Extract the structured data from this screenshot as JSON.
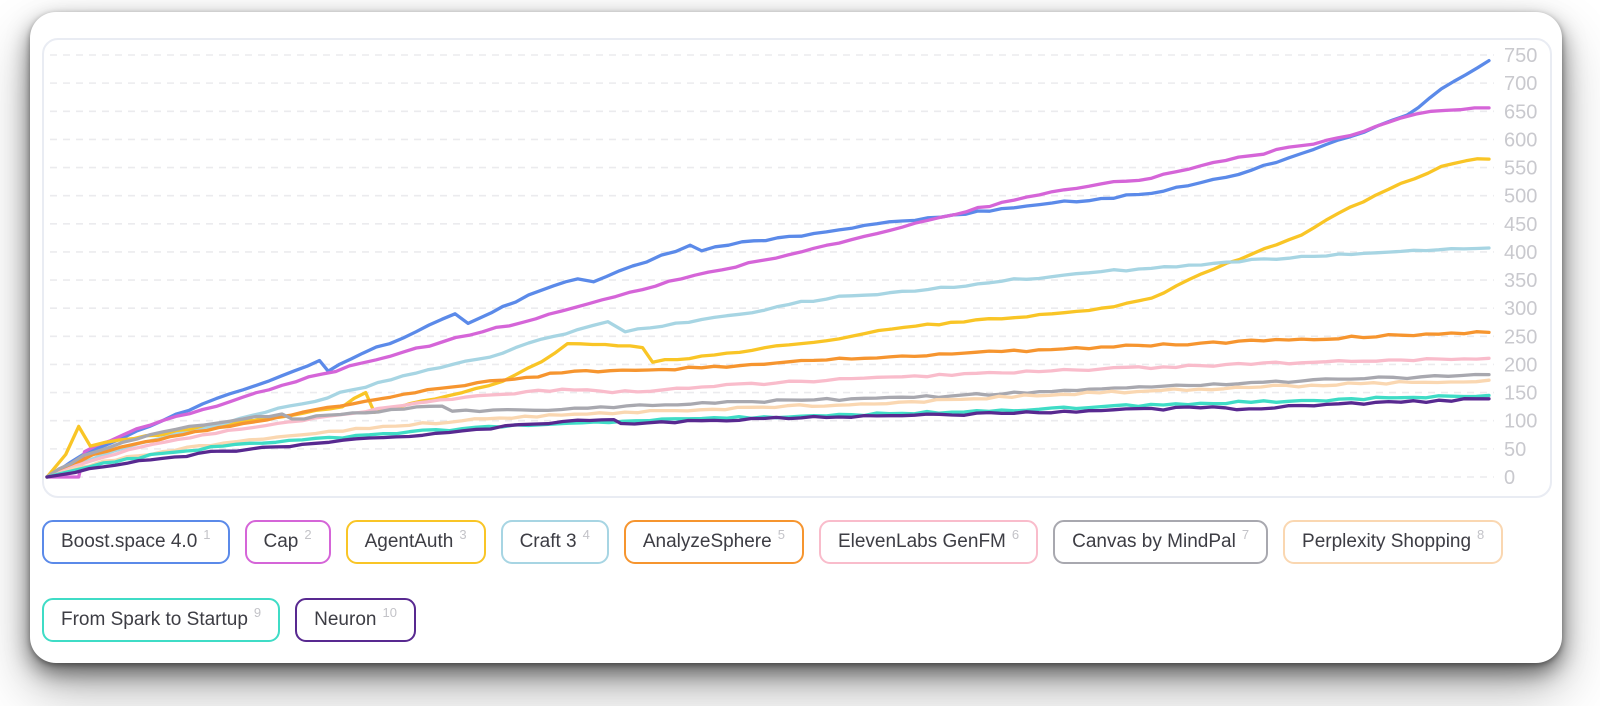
{
  "card": {
    "kind": "daily-ranking-chart-card"
  },
  "y_axis": {
    "ticks": [
      750,
      700,
      650,
      600,
      550,
      500,
      450,
      400,
      350,
      300,
      250,
      200,
      150,
      100,
      50,
      0
    ],
    "label_color": "#c9c9ce"
  },
  "grid_color": "#ebebee",
  "panel_border_color": "#e9ecf3",
  "chart_data": {
    "type": "line",
    "title": "",
    "xlabel": "",
    "ylabel": "",
    "ylim": [
      0,
      750
    ],
    "x_axis_labels": [],
    "grid": "horizontal-dashed",
    "legend_position": "bottom",
    "series": [
      {
        "rank": "1",
        "name": "Boost.space 4.0",
        "color": "#5b8ae9",
        "end_value": 740,
        "points": [
          [
            0,
            0
          ],
          [
            0.025,
            40
          ],
          [
            0.053,
            70
          ],
          [
            0.08,
            100
          ],
          [
            0.108,
            130
          ],
          [
            0.136,
            155
          ],
          [
            0.163,
            180
          ],
          [
            0.189,
            207
          ],
          [
            0.195,
            188
          ],
          [
            0.219,
            220
          ],
          [
            0.247,
            247
          ],
          [
            0.283,
            290
          ],
          [
            0.292,
            273
          ],
          [
            0.316,
            303
          ],
          [
            0.343,
            332
          ],
          [
            0.368,
            352
          ],
          [
            0.379,
            347
          ],
          [
            0.406,
            375
          ],
          [
            0.446,
            412
          ],
          [
            0.454,
            402
          ],
          [
            0.482,
            418
          ],
          [
            0.523,
            428
          ],
          [
            0.558,
            442
          ],
          [
            0.593,
            455
          ],
          [
            0.629,
            466
          ],
          [
            0.662,
            477
          ],
          [
            0.697,
            487
          ],
          [
            0.731,
            495
          ],
          [
            0.766,
            504
          ],
          [
            0.8,
            523
          ],
          [
            0.835,
            545
          ],
          [
            0.87,
            575
          ],
          [
            0.904,
            605
          ],
          [
            0.943,
            643
          ],
          [
            0.967,
            690
          ],
          [
            0.984,
            715
          ],
          [
            1,
            740
          ]
        ]
      },
      {
        "rank": "2",
        "name": "Cap",
        "color": "#d565d8",
        "end_value": 656,
        "points": [
          [
            0,
            0
          ],
          [
            0.022,
            0
          ],
          [
            0.026,
            45
          ],
          [
            0.053,
            75
          ],
          [
            0.08,
            100
          ],
          [
            0.108,
            120
          ],
          [
            0.136,
            142
          ],
          [
            0.163,
            163
          ],
          [
            0.191,
            183
          ],
          [
            0.219,
            203
          ],
          [
            0.247,
            222
          ],
          [
            0.274,
            240
          ],
          [
            0.302,
            258
          ],
          [
            0.33,
            275
          ],
          [
            0.357,
            295
          ],
          [
            0.385,
            315
          ],
          [
            0.413,
            333
          ],
          [
            0.44,
            352
          ],
          [
            0.468,
            368
          ],
          [
            0.496,
            385
          ],
          [
            0.523,
            400
          ],
          [
            0.558,
            422
          ],
          [
            0.593,
            444
          ],
          [
            0.629,
            466
          ],
          [
            0.662,
            488
          ],
          [
            0.697,
            507
          ],
          [
            0.731,
            521
          ],
          [
            0.766,
            531
          ],
          [
            0.8,
            553
          ],
          [
            0.835,
            571
          ],
          [
            0.87,
            589
          ],
          [
            0.904,
            607
          ],
          [
            0.939,
            638
          ],
          [
            0.96,
            650
          ],
          [
            1,
            656
          ]
        ]
      },
      {
        "rank": "3",
        "name": "AgentAuth",
        "color": "#f9c526",
        "end_value": 565,
        "points": [
          [
            0,
            0
          ],
          [
            0.013,
            40
          ],
          [
            0.022,
            90
          ],
          [
            0.03,
            55
          ],
          [
            0.06,
            68
          ],
          [
            0.094,
            82
          ],
          [
            0.136,
            100
          ],
          [
            0.177,
            113
          ],
          [
            0.205,
            125
          ],
          [
            0.221,
            150
          ],
          [
            0.227,
            115
          ],
          [
            0.26,
            135
          ],
          [
            0.288,
            150
          ],
          [
            0.316,
            170
          ],
          [
            0.343,
            205
          ],
          [
            0.361,
            237
          ],
          [
            0.413,
            230
          ],
          [
            0.42,
            204
          ],
          [
            0.454,
            215
          ],
          [
            0.489,
            225
          ],
          [
            0.523,
            237
          ],
          [
            0.558,
            250
          ],
          [
            0.586,
            263
          ],
          [
            0.627,
            275
          ],
          [
            0.697,
            290
          ],
          [
            0.731,
            300
          ],
          [
            0.766,
            318
          ],
          [
            0.818,
            380
          ],
          [
            0.87,
            430
          ],
          [
            0.904,
            480
          ],
          [
            0.939,
            522
          ],
          [
            0.967,
            552
          ],
          [
            0.984,
            562
          ],
          [
            1,
            565
          ]
        ]
      },
      {
        "rank": "4",
        "name": "Craft 3",
        "color": "#a7d5e3",
        "end_value": 407,
        "points": [
          [
            0,
            0
          ],
          [
            0.039,
            40
          ],
          [
            0.073,
            65
          ],
          [
            0.108,
            85
          ],
          [
            0.143,
            110
          ],
          [
            0.177,
            130
          ],
          [
            0.212,
            155
          ],
          [
            0.247,
            180
          ],
          [
            0.281,
            200
          ],
          [
            0.316,
            220
          ],
          [
            0.343,
            245
          ],
          [
            0.368,
            262
          ],
          [
            0.389,
            276
          ],
          [
            0.401,
            258
          ],
          [
            0.427,
            268
          ],
          [
            0.454,
            280
          ],
          [
            0.489,
            292
          ],
          [
            0.523,
            312
          ],
          [
            0.558,
            322
          ],
          [
            0.593,
            330
          ],
          [
            0.629,
            337
          ],
          [
            0.662,
            348
          ],
          [
            0.731,
            365
          ],
          [
            0.818,
            382
          ],
          [
            0.87,
            392
          ],
          [
            0.939,
            401
          ],
          [
            1,
            407
          ]
        ]
      },
      {
        "rank": "5",
        "name": "AnalyzeSphere",
        "color": "#f6952f",
        "end_value": 257,
        "points": [
          [
            0,
            0
          ],
          [
            0.032,
            40
          ],
          [
            0.06,
            58
          ],
          [
            0.094,
            75
          ],
          [
            0.136,
            95
          ],
          [
            0.177,
            115
          ],
          [
            0.212,
            130
          ],
          [
            0.247,
            147
          ],
          [
            0.281,
            160
          ],
          [
            0.316,
            172
          ],
          [
            0.357,
            185
          ],
          [
            0.399,
            190
          ],
          [
            0.454,
            194
          ],
          [
            0.523,
            207
          ],
          [
            0.593,
            215
          ],
          [
            0.662,
            223
          ],
          [
            0.731,
            231
          ],
          [
            0.8,
            238
          ],
          [
            0.87,
            245
          ],
          [
            0.939,
            252
          ],
          [
            1,
            257
          ]
        ]
      },
      {
        "rank": "6",
        "name": "ElevenLabs GenFM",
        "color": "#f9bccb",
        "end_value": 211,
        "points": [
          [
            0,
            0
          ],
          [
            0.039,
            35
          ],
          [
            0.073,
            58
          ],
          [
            0.108,
            75
          ],
          [
            0.143,
            88
          ],
          [
            0.177,
            100
          ],
          [
            0.212,
            113
          ],
          [
            0.247,
            127
          ],
          [
            0.281,
            138
          ],
          [
            0.316,
            147
          ],
          [
            0.357,
            156
          ],
          [
            0.392,
            150
          ],
          [
            0.454,
            160
          ],
          [
            0.523,
            170
          ],
          [
            0.593,
            178
          ],
          [
            0.662,
            185
          ],
          [
            0.731,
            192
          ],
          [
            0.8,
            198
          ],
          [
            0.87,
            203
          ],
          [
            0.939,
            208
          ],
          [
            1,
            211
          ]
        ]
      },
      {
        "rank": "7",
        "name": "Canvas by MindPal",
        "color": "#a8a8af",
        "end_value": 182,
        "points": [
          [
            0,
            0
          ],
          [
            0.025,
            38
          ],
          [
            0.053,
            62
          ],
          [
            0.08,
            80
          ],
          [
            0.108,
            92
          ],
          [
            0.136,
            103
          ],
          [
            0.163,
            112
          ],
          [
            0.17,
            103
          ],
          [
            0.212,
            114
          ],
          [
            0.274,
            126
          ],
          [
            0.281,
            117
          ],
          [
            0.357,
            120
          ],
          [
            0.42,
            127
          ],
          [
            0.489,
            134
          ],
          [
            0.558,
            139
          ],
          [
            0.627,
            144
          ],
          [
            0.697,
            152
          ],
          [
            0.766,
            160
          ],
          [
            0.835,
            168
          ],
          [
            0.904,
            174
          ],
          [
            0.953,
            178
          ],
          [
            1,
            182
          ]
        ]
      },
      {
        "rank": "8",
        "name": "Perplexity Shopping",
        "color": "#fad7b1",
        "end_value": 172,
        "points": [
          [
            0,
            0
          ],
          [
            0.039,
            28
          ],
          [
            0.08,
            45
          ],
          [
            0.122,
            60
          ],
          [
            0.177,
            75
          ],
          [
            0.233,
            90
          ],
          [
            0.288,
            100
          ],
          [
            0.357,
            110
          ],
          [
            0.427,
            118
          ],
          [
            0.496,
            124
          ],
          [
            0.565,
            130
          ],
          [
            0.634,
            138
          ],
          [
            0.704,
            147
          ],
          [
            0.773,
            154
          ],
          [
            0.842,
            160
          ],
          [
            0.911,
            166
          ],
          [
            1,
            172
          ]
        ]
      },
      {
        "rank": "9",
        "name": "From Spark to Startup",
        "color": "#3fdcc6",
        "end_value": 145,
        "points": [
          [
            0,
            0
          ],
          [
            0.039,
            25
          ],
          [
            0.08,
            42
          ],
          [
            0.122,
            55
          ],
          [
            0.177,
            66
          ],
          [
            0.233,
            77
          ],
          [
            0.288,
            86
          ],
          [
            0.343,
            93
          ],
          [
            0.399,
            99
          ],
          [
            0.454,
            104
          ],
          [
            0.523,
            108
          ],
          [
            0.593,
            113
          ],
          [
            0.662,
            119
          ],
          [
            0.731,
            125
          ],
          [
            0.8,
            131
          ],
          [
            0.87,
            136
          ],
          [
            0.939,
            141
          ],
          [
            1,
            145
          ]
        ]
      },
      {
        "rank": "10",
        "name": "Neuron",
        "color": "#582990",
        "end_value": 139,
        "points": [
          [
            0,
            0
          ],
          [
            0.039,
            18
          ],
          [
            0.08,
            33
          ],
          [
            0.122,
            46
          ],
          [
            0.177,
            58
          ],
          [
            0.233,
            70
          ],
          [
            0.288,
            82
          ],
          [
            0.337,
            94
          ],
          [
            0.368,
            101
          ],
          [
            0.393,
            102
          ],
          [
            0.398,
            95
          ],
          [
            0.454,
            100
          ],
          [
            0.523,
            105
          ],
          [
            0.593,
            109
          ],
          [
            0.662,
            113
          ],
          [
            0.731,
            118
          ],
          [
            0.8,
            123
          ],
          [
            0.842,
            121
          ],
          [
            0.87,
            127
          ],
          [
            0.939,
            133
          ],
          [
            1,
            139
          ]
        ]
      }
    ]
  }
}
